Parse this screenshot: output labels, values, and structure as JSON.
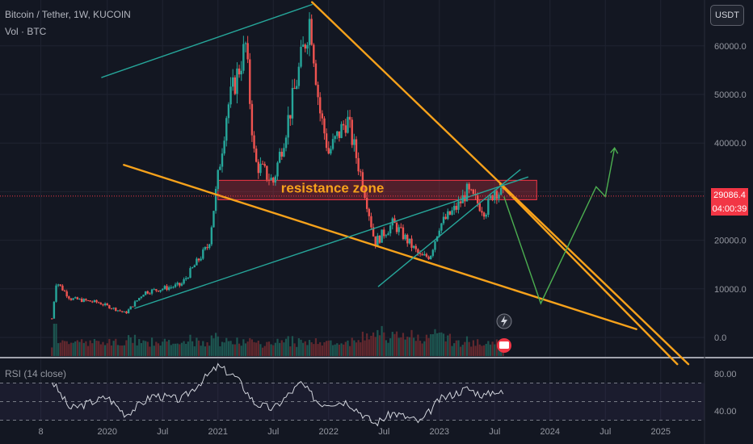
{
  "header": {
    "title": "Bitcoin / Tether, 1W, KUCOIN",
    "volume_label": "Vol · BTC",
    "currency_button": "USDT"
  },
  "price_tag": {
    "price": "29086.4",
    "countdown": "04:00:39",
    "color": "#f23645"
  },
  "colors": {
    "background": "#131722",
    "grid": "#1f2331",
    "up_candle": "#26a69a",
    "down_candle": "#ef5350",
    "trendline_orange": "#f7a21b",
    "channel_cyan": "#26a69a",
    "forecast_green": "#4caf50",
    "rsi_line": "#d1d4dc",
    "zone_fill": "#f23645",
    "zone_text": "#f7a21b"
  },
  "annotations": {
    "resistance_zone": "resistance zone"
  },
  "rsi_panel": {
    "label": "RSI (14 close)",
    "ticks": [
      "80.00",
      "40.00"
    ]
  },
  "chart_data": [
    {
      "type": "candlestick",
      "title": "Bitcoin / Tether, 1W, KUCOIN",
      "y_ticks": [
        "60000.0",
        "50000.0",
        "40000.0",
        "30000.0",
        "20000.0",
        "10000.0",
        "0.0"
      ],
      "y_range": [
        -2000,
        66000
      ],
      "x_ticks": [
        "8",
        "2020",
        "Jul",
        "2021",
        "Jul",
        "2022",
        "Jul",
        "2023",
        "Jul",
        "2024",
        "Jul",
        "2025"
      ],
      "grid": true,
      "price_line": 29086.4,
      "keypoints": [
        {
          "x": "2019-07",
          "close": 3900
        },
        {
          "x": "2019-07",
          "close": 11500
        },
        {
          "x": "2019-09",
          "close": 8000
        },
        {
          "x": "2019-12",
          "close": 7200
        },
        {
          "x": "2020-03",
          "close": 5000
        },
        {
          "x": "2020-05",
          "close": 9300
        },
        {
          "x": "2020-09",
          "close": 10800
        },
        {
          "x": "2020-12",
          "close": 19000
        },
        {
          "x": "2021-01",
          "close": 33000
        },
        {
          "x": "2021-02",
          "close": 47000
        },
        {
          "x": "2021-04",
          "close": 60000
        },
        {
          "x": "2021-05",
          "close": 36000
        },
        {
          "x": "2021-07",
          "close": 32000
        },
        {
          "x": "2021-09",
          "close": 48000
        },
        {
          "x": "2021-11",
          "close": 66000
        },
        {
          "x": "2021-12",
          "close": 47000
        },
        {
          "x": "2022-01",
          "close": 38000
        },
        {
          "x": "2022-03",
          "close": 45000
        },
        {
          "x": "2022-05",
          "close": 29500
        },
        {
          "x": "2022-06",
          "close": 19500
        },
        {
          "x": "2022-08",
          "close": 23500
        },
        {
          "x": "2022-11",
          "close": 16500
        },
        {
          "x": "2022-12",
          "close": 16800
        },
        {
          "x": "2023-01",
          "close": 23000
        },
        {
          "x": "2023-03",
          "close": 27000
        },
        {
          "x": "2023-04",
          "close": 30000
        },
        {
          "x": "2023-06",
          "close": 26000
        },
        {
          "x": "2023-07",
          "close": 30500
        },
        {
          "x": "2023-08",
          "close": 29086
        }
      ],
      "projection": [
        {
          "x": "2023-08",
          "y": 29000
        },
        {
          "x": "2023-12",
          "y": 7000
        },
        {
          "x": "2024-06",
          "y": 31000
        },
        {
          "x": "2024-07",
          "y": 29000
        },
        {
          "x": "2024-08",
          "y": 39000
        }
      ],
      "resistance_zone": [
        28500,
        32500
      ]
    },
    {
      "type": "line",
      "title": "RSI (14 close)",
      "y_ticks": [
        "80.00",
        "40.00"
      ],
      "levels": [
        70,
        50,
        30
      ],
      "keypoints": [
        {
          "x": "2019-07",
          "y": 72
        },
        {
          "x": "2019-09",
          "y": 42
        },
        {
          "x": "2020-01",
          "y": 55
        },
        {
          "x": "2020-03",
          "y": 36
        },
        {
          "x": "2020-06",
          "y": 57
        },
        {
          "x": "2020-09",
          "y": 52
        },
        {
          "x": "2021-01",
          "y": 88
        },
        {
          "x": "2021-03",
          "y": 76
        },
        {
          "x": "2021-05",
          "y": 48
        },
        {
          "x": "2021-07",
          "y": 42
        },
        {
          "x": "2021-10",
          "y": 70
        },
        {
          "x": "2021-12",
          "y": 48
        },
        {
          "x": "2022-03",
          "y": 50
        },
        {
          "x": "2022-06",
          "y": 26
        },
        {
          "x": "2022-08",
          "y": 38
        },
        {
          "x": "2022-11",
          "y": 28
        },
        {
          "x": "2023-01",
          "y": 52
        },
        {
          "x": "2023-03",
          "y": 60
        },
        {
          "x": "2023-04",
          "y": 64
        },
        {
          "x": "2023-06",
          "y": 56
        },
        {
          "x": "2023-07",
          "y": 62
        },
        {
          "x": "2023-08",
          "y": 58
        }
      ]
    }
  ]
}
